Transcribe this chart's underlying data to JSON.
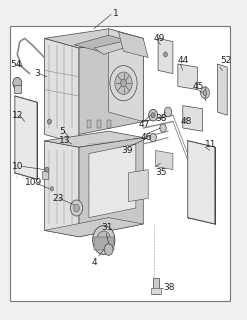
{
  "fig_width": 2.47,
  "fig_height": 3.2,
  "dpi": 100,
  "bg_color": "#f0f0f0",
  "border_color": "#777777",
  "line_color": "#444444",
  "text_color": "#222222",
  "gray_fill": "#d8d8d8",
  "light_fill": "#eeeeee",
  "dark_fill": "#b8b8b8",
  "white_fill": "#ffffff",
  "font_size": 6.5,
  "border": [
    0.04,
    0.06,
    0.93,
    0.92
  ]
}
